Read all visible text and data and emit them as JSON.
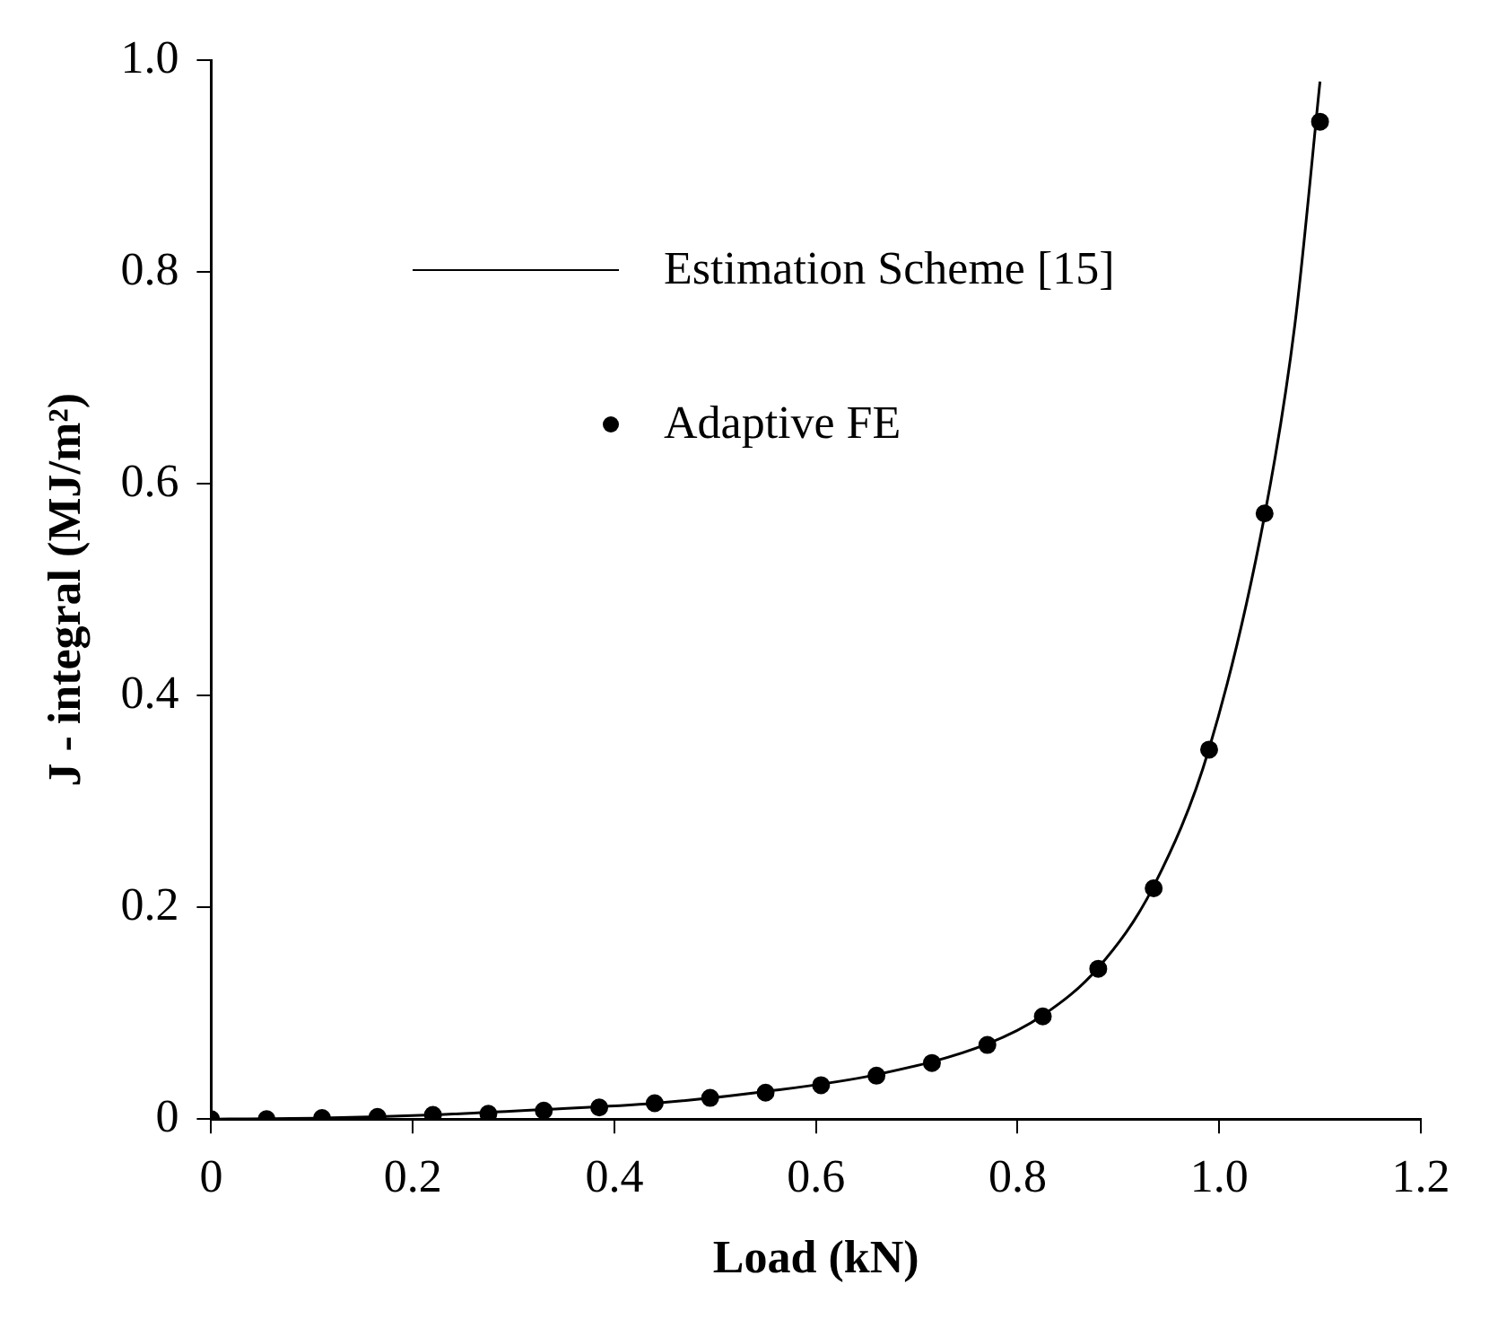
{
  "chart_data": {
    "type": "scatter",
    "xlabel": "Load (kN)",
    "ylabel": "J - integral (MJ/m²)",
    "xlim": [
      0,
      1.2
    ],
    "xticks": [
      0,
      0.2,
      0.4,
      0.6,
      0.8,
      {
        "value": 1,
        "label": "1.0"
      },
      1.2
    ],
    "ylim": [
      0,
      1
    ],
    "yticks": [
      0,
      0.2,
      0.4,
      0.6,
      0.8,
      {
        "value": 1,
        "label": "1.0"
      }
    ],
    "grid": false,
    "legend": "top left",
    "series": [
      {
        "name": "Estimation Scheme [15]",
        "type": "line",
        "marker": "none",
        "line_style": "solid",
        "color": "#000000",
        "x": [
          0,
          0.11,
          0.22,
          0.33,
          0.44,
          0.55,
          0.66,
          0.77,
          0.825,
          0.88,
          0.935,
          0.99,
          1.045,
          1.075,
          1.1
        ],
        "values": [
          0,
          0.001,
          0.004,
          0.009,
          0.015,
          0.026,
          0.042,
          0.071,
          0.098,
          0.143,
          0.22,
          0.35,
          0.57,
          0.75,
          0.98
        ]
      },
      {
        "name": "Adaptive FE",
        "type": "scatter",
        "marker": "circle",
        "color": "#000000",
        "x": [
          0,
          0.055,
          0.11,
          0.165,
          0.22,
          0.275,
          0.33,
          0.385,
          0.44,
          0.495,
          0.55,
          0.605,
          0.66,
          0.715,
          0.77,
          0.825,
          0.88,
          0.935,
          0.99,
          1.045,
          1.1
        ],
        "values": [
          0,
          0,
          0.001,
          0.002,
          0.004,
          0.005,
          0.008,
          0.011,
          0.015,
          0.02,
          0.025,
          0.032,
          0.041,
          0.053,
          0.07,
          0.097,
          0.142,
          0.218,
          0.349,
          0.572,
          0.942
        ]
      }
    ]
  }
}
